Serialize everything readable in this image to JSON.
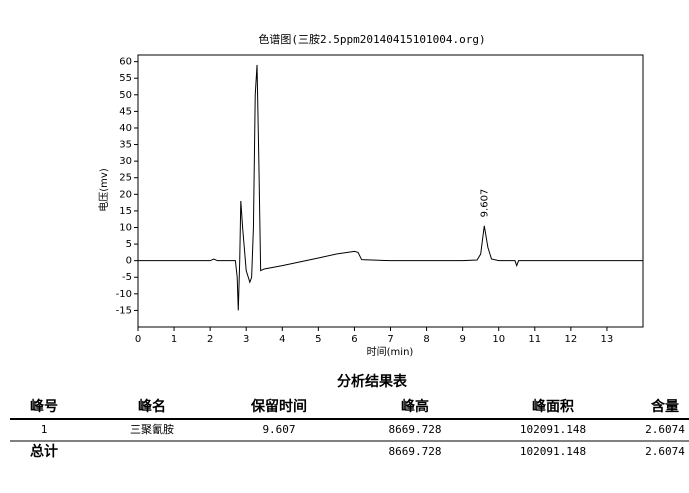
{
  "chart_data": {
    "type": "line",
    "title": "色谱图(三胺2.5ppm20140415101004.org)",
    "x_label": "时间(min)",
    "y_label": "电压(mv)",
    "x": [
      0,
      2,
      2.1,
      2.2,
      2.7,
      2.75,
      2.78,
      2.82,
      2.85,
      2.9,
      3.0,
      3.1,
      3.15,
      3.2,
      3.25,
      3.3,
      3.35,
      3.4,
      3.5,
      4,
      5,
      5.5,
      6,
      6.1,
      6.2,
      7,
      9,
      9.4,
      9.5,
      9.6,
      9.7,
      9.8,
      10,
      10.45,
      10.5,
      10.55,
      12,
      14
    ],
    "series": [
      {
        "name": "电压",
        "color": "#000000",
        "values": [
          0,
          0,
          0.5,
          0,
          0,
          -5,
          -15,
          0,
          18,
          10,
          -3,
          -6.5,
          -5,
          10,
          50,
          59,
          30,
          -3,
          -2.5,
          -1.5,
          0.8,
          2,
          2.8,
          2.5,
          0.3,
          0,
          0,
          0.2,
          2,
          10.5,
          4,
          0.5,
          0,
          0,
          -1.5,
          0,
          0,
          0
        ]
      }
    ],
    "peak_labels": [
      {
        "value": 9.607,
        "label": "9.607"
      }
    ],
    "xlim": [
      0,
      14
    ],
    "xticks": [
      0,
      1,
      2,
      3,
      4,
      5,
      6,
      7,
      8,
      9,
      10,
      11,
      12,
      13
    ],
    "ylim": [
      -20,
      62
    ],
    "yticks": [
      -15,
      -10,
      -5,
      0,
      5,
      10,
      15,
      20,
      25,
      30,
      35,
      40,
      45,
      50,
      55,
      60
    ]
  },
  "table": {
    "title": "分析结果表",
    "headers": [
      "峰号",
      "峰名",
      "保留时间",
      "峰高",
      "峰面积",
      "含量"
    ],
    "rows": [
      [
        "1",
        "三聚氰胺",
        "9.607",
        "8669.728",
        "102091.148",
        "2.6074"
      ]
    ],
    "total": {
      "label": "总计",
      "values": [
        "8669.728",
        "102091.148",
        "2.6074"
      ]
    }
  }
}
